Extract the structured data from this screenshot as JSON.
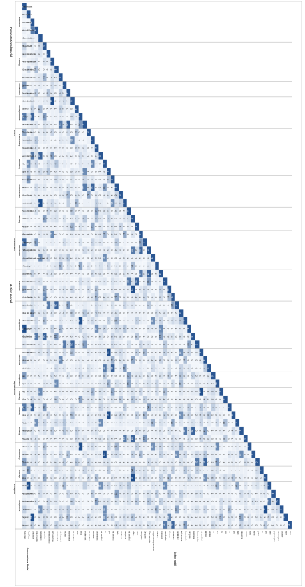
{
  "groups": {
    "computational_model": "Computational Model",
    "action_model": "Action model"
  },
  "subgroups": [
    {
      "group": "computational_model",
      "label": "Evaluation",
      "levels": [
        "Benchmark",
        "Real Robot",
        "Simulation",
        "Virtual Reality",
        "Combination"
      ]
    },
    {
      "group": "computational_model",
      "label": "Training",
      "levels": [
        "supervised",
        "semi-supervised",
        "self-supervised",
        "unsupervised",
        "reinforcement"
      ]
    },
    {
      "group": "computational_model",
      "label": "Formulation",
      "levels": [
        "heuristic",
        "mathematical"
      ]
    },
    {
      "group": "action_model",
      "label": "Correspondence",
      "levels": [
        "not specified",
        "both",
        "body",
        "environment"
      ]
    },
    {
      "group": "action_model",
      "label": "Predictability",
      "levels": [
        "not specified",
        "stochastic",
        "deterministic"
      ]
    },
    {
      "group": "action_model",
      "label": "Grounding",
      "levels": [
        "not specified",
        "no",
        "yes"
      ]
    },
    {
      "group": "action_model",
      "label": "Discretization",
      "levels": [
        "not specified",
        "both",
        "continuous",
        "categorical"
      ]
    },
    {
      "group": "action_model",
      "label": "Learning",
      "levels": [
        "not specified",
        "offline",
        "online"
      ]
    },
    {
      "group": "action_model",
      "label": "Exploitation",
      "levels": [
        "Recognition",
        "Language",
        "Effect prediction",
        "Single/Multi step prediction",
        "Planning"
      ]
    },
    {
      "group": "action_model",
      "label": "Prediction",
      "levels": [
        "regression",
        "classification",
        "inference",
        "optimization"
      ]
    },
    {
      "group": "action_model",
      "label": "Acquisition",
      "levels": [
        "combination",
        "trial and error",
        "Ground truth",
        "Language",
        "Exploration",
        "Demonstration"
      ]
    },
    {
      "group": "action_model",
      "label": "Abstraction",
      "levels": [
        "not specified",
        "intrinsic",
        "extrinsic"
      ]
    },
    {
      "group": "action_model",
      "label": "Competition",
      "levels": [
        "no",
        "yes"
      ]
    },
    {
      "group": "action_model",
      "label": "Chaining",
      "levels": [
        "no",
        "yes"
      ]
    },
    {
      "group": "action_model",
      "label": "Stability",
      "levels": [
        "no",
        "yes"
      ]
    },
    {
      "group": "action_model",
      "label": "Modality",
      "levels": [
        "both",
        "categorical",
        "discrete"
      ]
    },
    {
      "group": "action_model",
      "label": "Granularity",
      "levels": [
        "local",
        "mixed",
        "global"
      ]
    },
    {
      "group": "action_model",
      "label": "Concept",
      "levels": [
        "no",
        "yes"
      ]
    },
    {
      "group": "action_model",
      "label": "Perspective",
      "levels": [
        "both",
        "proprioceptive",
        "exteroceptive",
        "observer",
        "agent",
        "none"
      ]
    }
  ],
  "super_labels": {
    "representation": "Representation",
    "development": "Development",
    "effect": "Effect",
    "perception": "Perception"
  },
  "colors": {
    "low": "#f2f6fb",
    "high": "#1f4e8c",
    "grid": "#d8d8d8",
    "text": "#222222"
  },
  "matrix_note": "lower-triangular co-occurrence counts",
  "cell_values_seed": [
    0,
    1,
    2,
    0,
    3,
    1,
    5,
    0,
    2,
    4,
    1,
    0,
    7,
    2,
    0,
    1,
    3,
    0,
    9,
    1,
    2,
    0,
    4,
    1,
    0,
    6,
    2,
    1,
    0,
    3,
    12,
    0,
    1,
    2,
    0,
    5,
    1,
    8,
    0,
    2,
    1,
    0,
    3,
    4,
    0,
    15,
    2,
    1,
    0,
    2,
    6,
    0,
    1,
    3,
    0,
    22,
    1,
    0,
    4,
    2,
    1,
    0,
    7,
    3,
    0,
    1,
    2,
    0,
    18,
    4,
    1,
    0,
    2,
    3,
    0,
    5,
    1,
    0,
    2,
    9,
    1,
    0,
    3,
    26,
    2,
    1,
    0,
    4,
    0,
    2,
    11,
    1,
    0,
    3,
    1,
    0,
    6,
    0,
    2,
    1,
    14,
    0,
    3,
    1,
    0,
    2,
    5,
    0,
    1,
    8,
    0,
    2,
    31,
    1,
    0,
    4,
    2,
    0,
    1,
    3,
    0,
    7,
    1,
    0,
    2,
    16,
    0,
    1,
    3,
    0,
    2,
    4,
    1,
    0,
    10,
    2,
    0,
    1,
    5,
    0,
    3,
    1,
    0,
    2,
    19,
    0,
    1,
    4
  ]
}
